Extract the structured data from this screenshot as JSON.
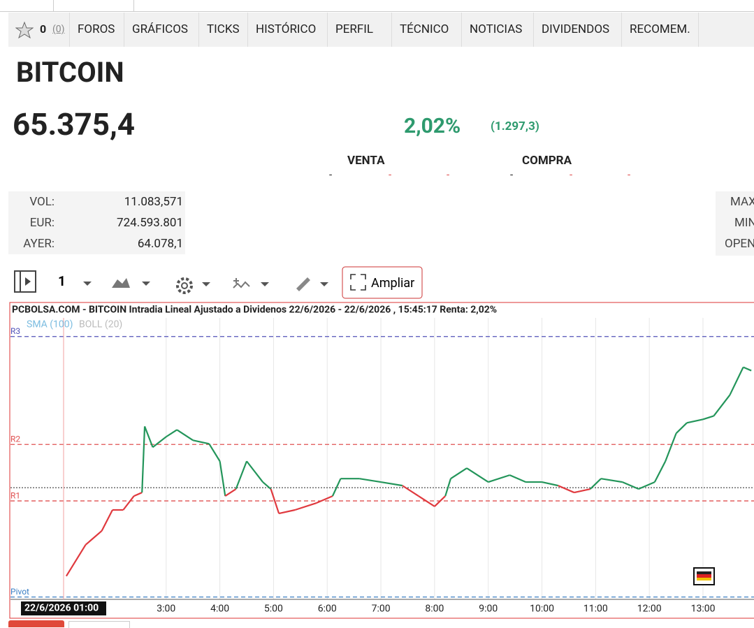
{
  "nav": {
    "star_count": "0",
    "star_votes": "(0)",
    "items": [
      "FOROS",
      "GRÁFICOS",
      "TICKS",
      "HISTÓRICO",
      "PERFIL",
      "TÉCNICO",
      "NOTICIAS",
      "DIVIDENDOS",
      "RECOMEM."
    ]
  },
  "header": {
    "title": "BITCOIN"
  },
  "quote": {
    "price": "65.375,4",
    "change_pct": "2,02%",
    "change_abs": "(1.297,3)",
    "sell_label": "VENTA",
    "buy_label": "COMPRA",
    "dashes": [
      "-",
      "-",
      "-",
      "-",
      "-",
      "-"
    ]
  },
  "stats": {
    "rows": [
      [
        "VOL:",
        "11.083,571"
      ],
      [
        "EUR:",
        "724.593.801"
      ],
      [
        "AYER:",
        "64.078,1"
      ]
    ],
    "right_labels": [
      "MAX",
      "MIN",
      "OPEN"
    ]
  },
  "toolbar": {
    "interval": "1",
    "expand": "Ampliar"
  },
  "chart_data": {
    "type": "line",
    "title": "PCBOLSA.COM - BITCOIN Intradia Lineal Ajustado a Dividenos 22/6/2026 - 22/6/2026 , 15:45:17 Renta: 2,02%",
    "indicators": [
      "SMA (100)",
      "BOLL (20)"
    ],
    "crosshair_label": "22/6/2026 01:00",
    "up_color": "#23955a",
    "down_color": "#e0393e",
    "reference_line": 64078.1,
    "levels": [
      {
        "name": "R3",
        "value": 65753,
        "color": "#5050b8"
      },
      {
        "name": "R2",
        "value": 64557,
        "color": "#e05050"
      },
      {
        "name": "R1",
        "value": 63931,
        "color": "#e05050"
      },
      {
        "name": "Pivot",
        "value": 62866,
        "color": "#3b7fc4"
      }
    ],
    "x": [
      1.14,
      1.5,
      1.8,
      2.0,
      2.2,
      2.4,
      2.55,
      2.6,
      2.75,
      3.0,
      3.2,
      3.5,
      3.8,
      4.0,
      4.1,
      4.3,
      4.5,
      4.8,
      4.95,
      5.1,
      5.4,
      5.8,
      6.1,
      6.25,
      6.6,
      7.0,
      7.4,
      7.7,
      8.0,
      8.2,
      8.3,
      8.6,
      9.0,
      9.4,
      9.7,
      10.0,
      10.3,
      10.6,
      10.9,
      11.1,
      11.5,
      11.8,
      12.1,
      12.3,
      12.5,
      12.7,
      13.0,
      13.2,
      13.5,
      13.75,
      13.9
    ],
    "values": [
      63098,
      63445,
      63599,
      63831,
      63831,
      63985,
      64024,
      64757,
      64526,
      64642,
      64719,
      64603,
      64564,
      64371,
      63985,
      64063,
      64371,
      64140,
      64063,
      63792,
      63831,
      63908,
      63985,
      64178,
      64178,
      64140,
      64101,
      63985,
      63870,
      63985,
      64178,
      64294,
      64140,
      64217,
      64140,
      64140,
      64101,
      64024,
      64063,
      64178,
      64140,
      64063,
      64140,
      64371,
      64680,
      64796,
      64835,
      64873,
      65105,
      65413,
      65375
    ],
    "xlim": [
      0.1,
      13.95
    ],
    "ylim": [
      62840,
      65960
    ],
    "xticks": [
      {
        "value": 3,
        "label": "3:00"
      },
      {
        "value": 4,
        "label": "4:00"
      },
      {
        "value": 5,
        "label": "5:00"
      },
      {
        "value": 6,
        "label": "6:00"
      },
      {
        "value": 7,
        "label": "7:00"
      },
      {
        "value": 8,
        "label": "8:00"
      },
      {
        "value": 9,
        "label": "9:00"
      },
      {
        "value": 10,
        "label": "10:00"
      },
      {
        "value": 11,
        "label": "11:00"
      },
      {
        "value": 12,
        "label": "12:00"
      },
      {
        "value": 13,
        "label": "13:00"
      }
    ],
    "grid": true
  }
}
